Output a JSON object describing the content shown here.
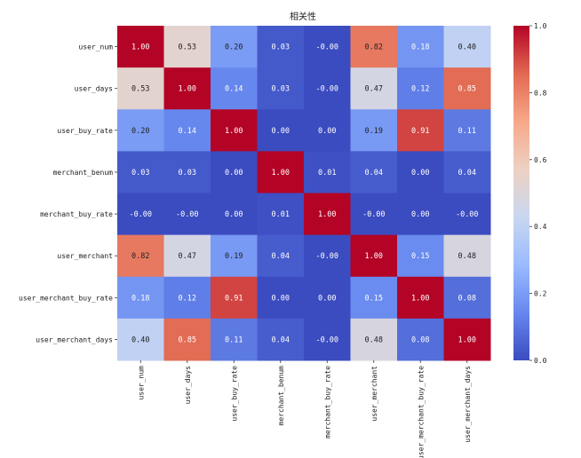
{
  "chart_data": {
    "type": "heatmap",
    "title": "相关性",
    "labels": [
      "user_num",
      "user_days",
      "user_buy_rate",
      "merchant_benum",
      "merchant_buy_rate",
      "user_merchant",
      "user_merchant_buy_rate",
      "user_merchant_days"
    ],
    "values": [
      [
        1.0,
        0.53,
        0.2,
        0.03,
        -0.0,
        0.82,
        0.18,
        0.4
      ],
      [
        0.53,
        1.0,
        0.14,
        0.03,
        -0.0,
        0.47,
        0.12,
        0.85
      ],
      [
        0.2,
        0.14,
        1.0,
        0.0,
        0.0,
        0.19,
        0.91,
        0.11
      ],
      [
        0.03,
        0.03,
        0.0,
        1.0,
        0.01,
        0.04,
        0.0,
        0.04
      ],
      [
        -0.0,
        -0.0,
        0.0,
        0.01,
        1.0,
        -0.0,
        0.0,
        -0.0
      ],
      [
        0.82,
        0.47,
        0.19,
        0.04,
        -0.0,
        1.0,
        0.15,
        0.48
      ],
      [
        0.18,
        0.12,
        0.91,
        0.0,
        0.0,
        0.15,
        1.0,
        0.08
      ],
      [
        0.4,
        0.85,
        0.11,
        0.04,
        -0.0,
        0.48,
        0.08,
        1.0
      ]
    ],
    "cell_labels": [
      [
        "1.00",
        "0.53",
        "0.20",
        "0.03",
        "-0.00",
        "0.82",
        "0.18",
        "0.40"
      ],
      [
        "0.53",
        "1.00",
        "0.14",
        "0.03",
        "-0.00",
        "0.47",
        "0.12",
        "0.85"
      ],
      [
        "0.20",
        "0.14",
        "1.00",
        "0.00",
        "0.00",
        "0.19",
        "0.91",
        "0.11"
      ],
      [
        "0.03",
        "0.03",
        "0.00",
        "1.00",
        "0.01",
        "0.04",
        "0.00",
        "0.04"
      ],
      [
        "-0.00",
        "-0.00",
        "0.00",
        "0.01",
        "1.00",
        "-0.00",
        "0.00",
        "-0.00"
      ],
      [
        "0.82",
        "0.47",
        "0.19",
        "0.04",
        "-0.00",
        "1.00",
        "0.15",
        "0.48"
      ],
      [
        "0.18",
        "0.12",
        "0.91",
        "0.00",
        "0.00",
        "0.15",
        "1.00",
        "0.08"
      ],
      [
        "0.40",
        "0.85",
        "0.11",
        "0.04",
        "-0.00",
        "0.48",
        "0.08",
        "1.00"
      ]
    ],
    "colorbar": {
      "range": [
        0.0,
        1.0
      ],
      "ticks": [
        0.0,
        0.2,
        0.4,
        0.6,
        0.8,
        1.0
      ],
      "tick_labels": [
        "0.0",
        "0.2",
        "0.4",
        "0.6",
        "0.8",
        "1.0"
      ]
    },
    "colormap": "coolwarm",
    "colormap_stops": [
      "#3b4cc0",
      "#6788ee",
      "#9abbff",
      "#c9d7f0",
      "#edd1c2",
      "#f7a889",
      "#e26952",
      "#b40426"
    ]
  }
}
